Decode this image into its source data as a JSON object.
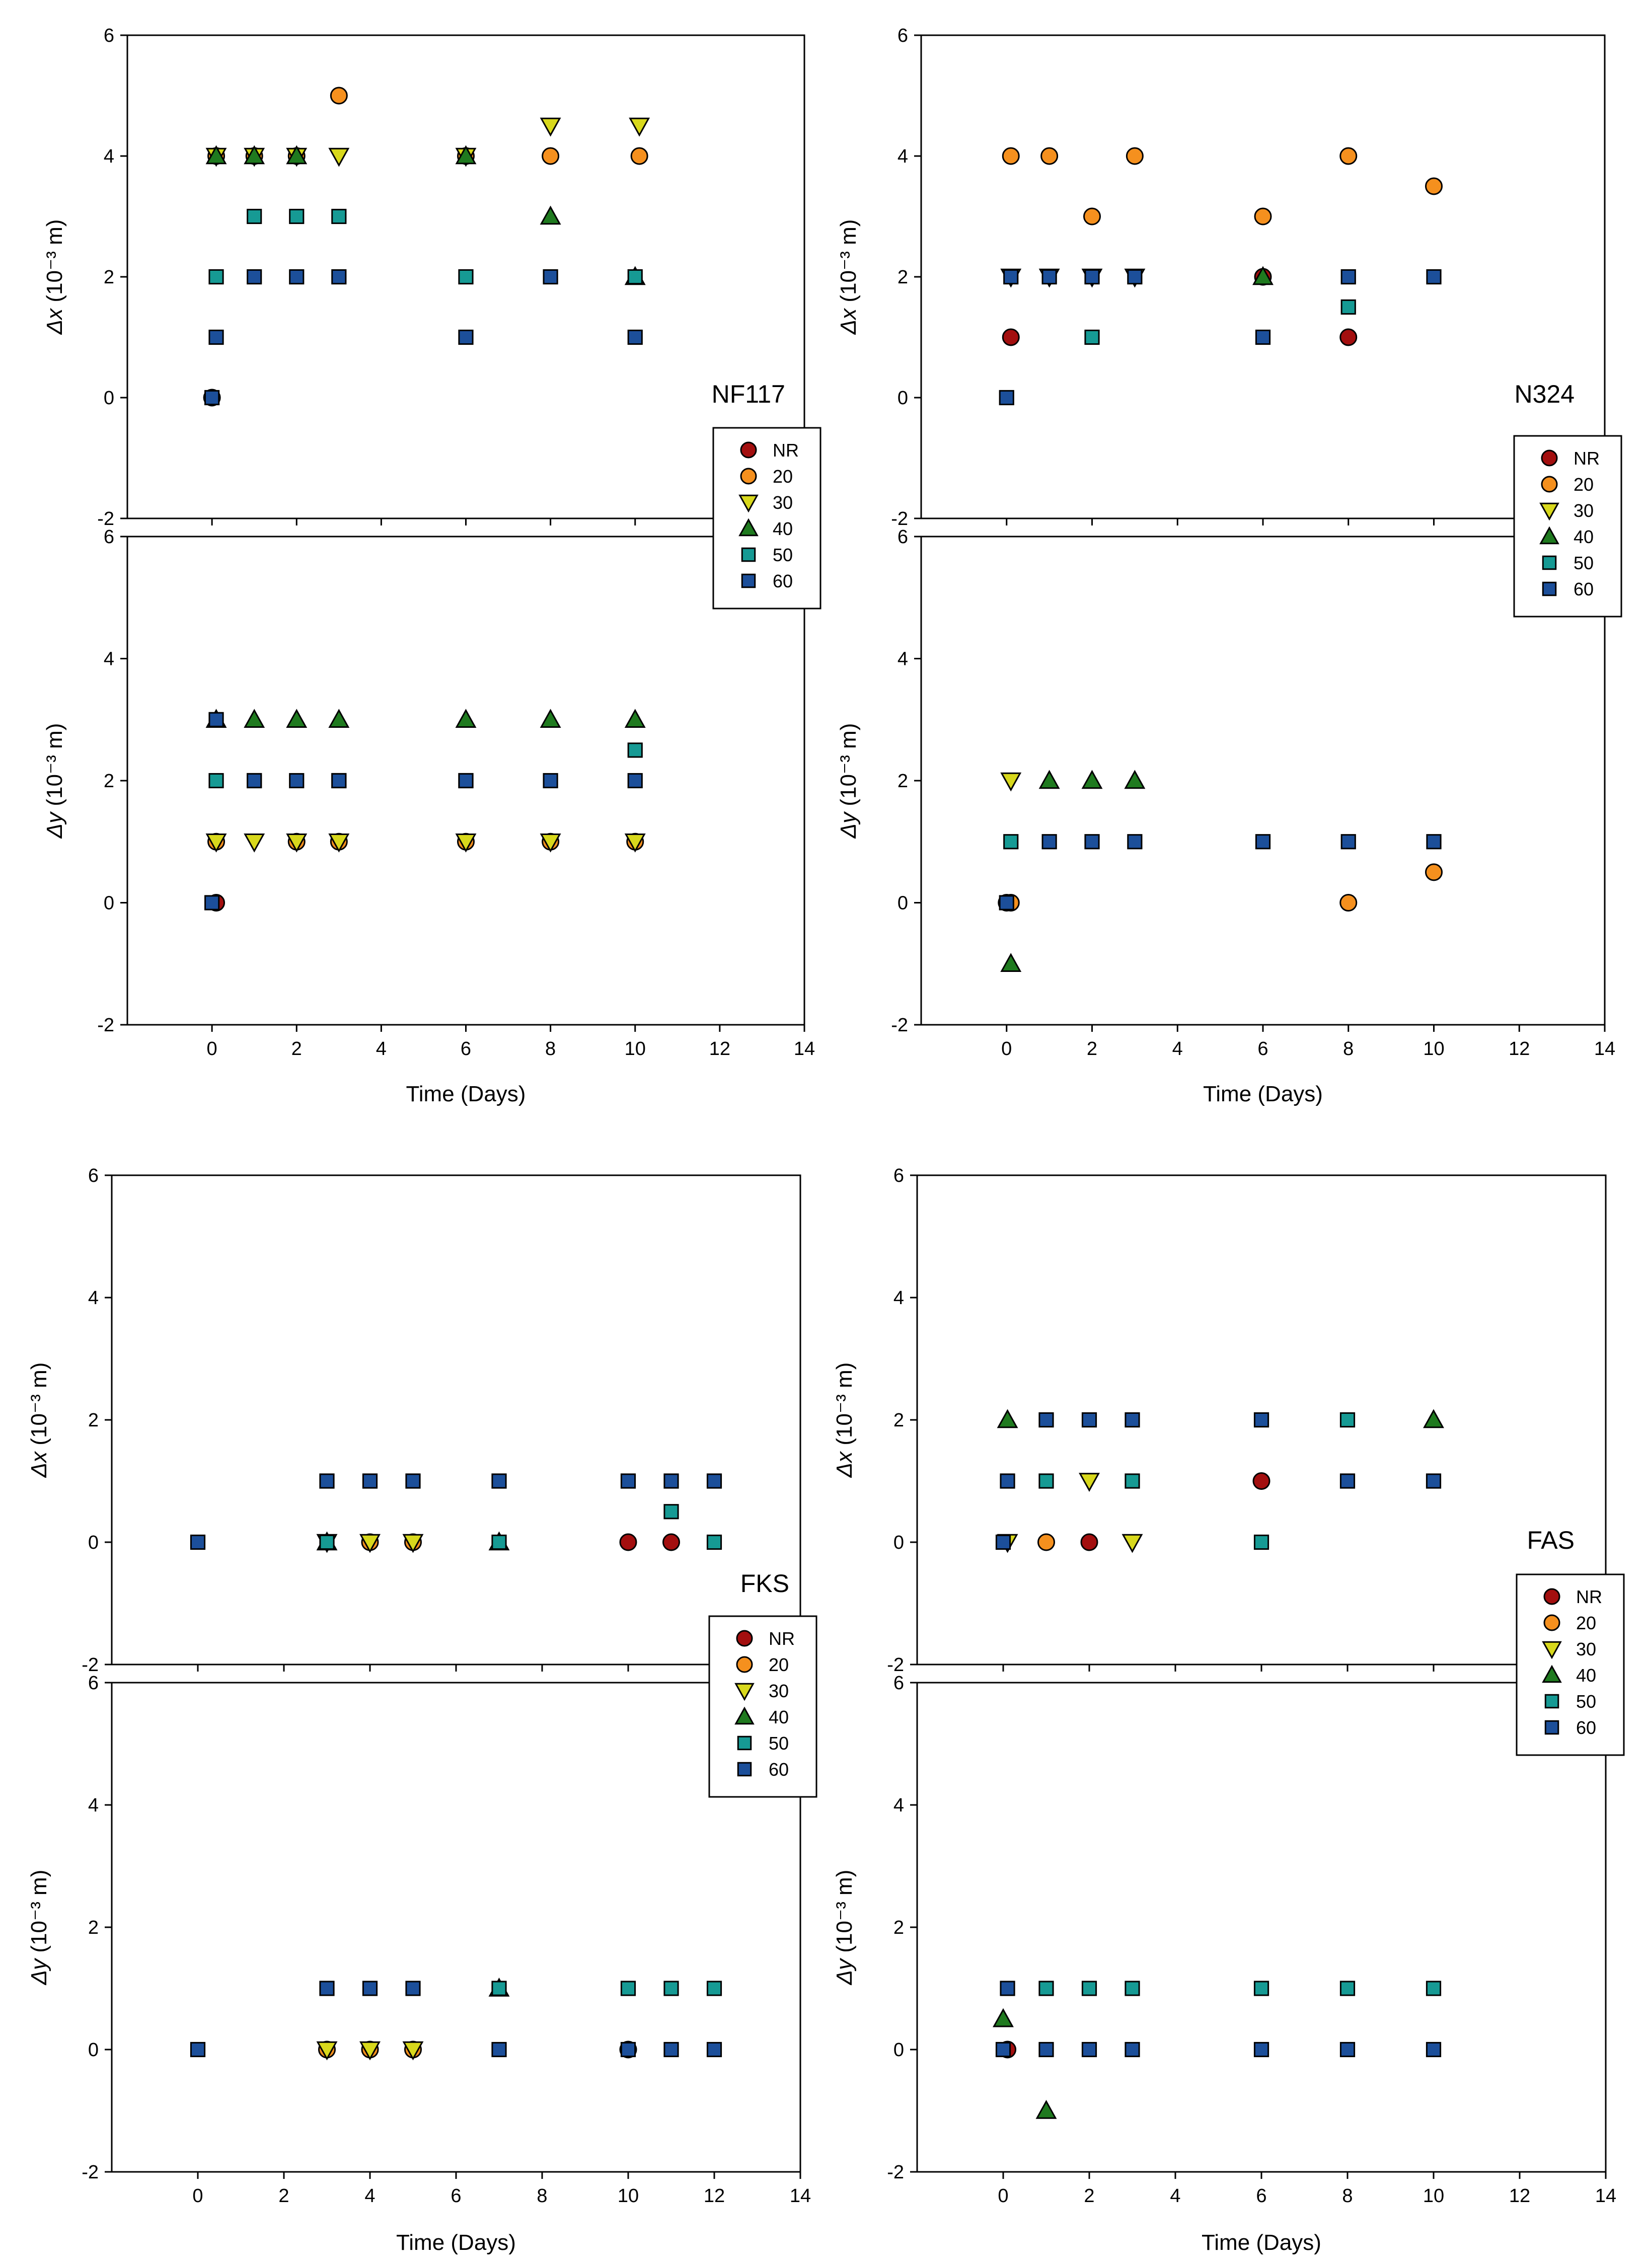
{
  "chart_data": [
    {
      "type": "scatter",
      "title": "NF117",
      "xlabel": "Time (Days)",
      "xlim": [
        -2,
        14
      ],
      "xticks": [
        0,
        2,
        4,
        6,
        8,
        10,
        12,
        14
      ],
      "subplots": [
        {
          "ylabel_symbol": "Δx",
          "ylabel_unit": "(10⁻³ m)",
          "ylim": [
            -2,
            6
          ],
          "yticks": [
            -2,
            0,
            2,
            4,
            6
          ],
          "series": [
            {
              "name": "NR",
              "x": [
                0
              ],
              "y": [
                0
              ]
            },
            {
              "name": "20",
              "x": [
                0.1,
                1,
                2,
                3,
                6,
                8,
                10.1
              ],
              "y": [
                4,
                4,
                4,
                5,
                4,
                4,
                4
              ]
            },
            {
              "name": "30",
              "x": [
                0.1,
                1,
                2,
                3,
                6,
                8,
                10.1
              ],
              "y": [
                4,
                4,
                4,
                4,
                4,
                4.5,
                4.5
              ]
            },
            {
              "name": "40",
              "x": [
                0.1,
                1,
                2,
                6,
                8,
                10
              ],
              "y": [
                4,
                4,
                4,
                4,
                3,
                2
              ]
            },
            {
              "name": "50",
              "x": [
                0.1,
                1,
                2,
                3,
                6,
                10
              ],
              "y": [
                2,
                3,
                3,
                3,
                2,
                2
              ]
            },
            {
              "name": "60",
              "x": [
                0,
                0.1,
                1,
                2,
                3,
                6,
                8,
                10
              ],
              "y": [
                0,
                1,
                2,
                2,
                2,
                1,
                2,
                1
              ]
            }
          ]
        },
        {
          "ylabel_symbol": "Δy",
          "ylabel_unit": "(10⁻³ m)",
          "ylim": [
            -2,
            6
          ],
          "yticks": [
            -2,
            0,
            2,
            4,
            6
          ],
          "series": [
            {
              "name": "NR",
              "x": [
                0.1
              ],
              "y": [
                0
              ]
            },
            {
              "name": "20",
              "x": [
                0.1,
                2,
                3,
                6,
                8,
                10
              ],
              "y": [
                1,
                1,
                1,
                1,
                1,
                1
              ]
            },
            {
              "name": "30",
              "x": [
                0.1,
                1,
                2,
                3,
                6,
                8,
                10
              ],
              "y": [
                1,
                1,
                1,
                1,
                1,
                1,
                1
              ]
            },
            {
              "name": "40",
              "x": [
                0.1,
                1,
                2,
                3,
                6,
                8,
                10
              ],
              "y": [
                3,
                3,
                3,
                3,
                3,
                3,
                3
              ]
            },
            {
              "name": "50",
              "x": [
                0.1,
                1,
                3,
                6,
                10
              ],
              "y": [
                2,
                2,
                2,
                2,
                2.5
              ]
            },
            {
              "name": "60",
              "x": [
                0,
                0.1,
                1,
                2,
                3,
                6,
                8,
                10
              ],
              "y": [
                0,
                3,
                2,
                2,
                2,
                2,
                2,
                2
              ]
            }
          ]
        }
      ],
      "legend": {
        "placement": "right-middle",
        "entries": [
          "NR",
          "20",
          "30",
          "40",
          "50",
          "60"
        ]
      }
    },
    {
      "type": "scatter",
      "title": "N324",
      "xlabel": "Time (Days)",
      "xlim": [
        -2,
        14
      ],
      "xticks": [
        0,
        2,
        4,
        6,
        8,
        10,
        12,
        14
      ],
      "subplots": [
        {
          "ylabel_symbol": "Δx",
          "ylabel_unit": "(10⁻³ m)",
          "ylim": [
            -2,
            6
          ],
          "yticks": [
            -2,
            0,
            2,
            4,
            6
          ],
          "series": [
            {
              "name": "NR",
              "x": [
                0.1,
                6,
                8
              ],
              "y": [
                1,
                2,
                1
              ]
            },
            {
              "name": "20",
              "x": [
                0.1,
                1,
                2,
                3,
                6,
                8,
                10
              ],
              "y": [
                4,
                4,
                3,
                4,
                3,
                4,
                3.5
              ]
            },
            {
              "name": "30",
              "x": [
                0.1,
                1,
                2,
                3
              ],
              "y": [
                2,
                2,
                2,
                2
              ]
            },
            {
              "name": "40",
              "x": [
                6
              ],
              "y": [
                2
              ]
            },
            {
              "name": "50",
              "x": [
                2,
                8
              ],
              "y": [
                1,
                1.5
              ]
            },
            {
              "name": "60",
              "x": [
                0,
                0.1,
                1,
                2,
                3,
                6,
                8,
                10
              ],
              "y": [
                0,
                2,
                2,
                2,
                2,
                1,
                2,
                2
              ]
            }
          ]
        },
        {
          "ylabel_symbol": "Δy",
          "ylabel_unit": "(10⁻³ m)",
          "ylim": [
            -2,
            6
          ],
          "yticks": [
            -2,
            0,
            2,
            4,
            6
          ],
          "series": [
            {
              "name": "NR",
              "x": [
                0
              ],
              "y": [
                0
              ]
            },
            {
              "name": "20",
              "x": [
                0.1,
                8,
                10
              ],
              "y": [
                0,
                0,
                0.5
              ]
            },
            {
              "name": "30",
              "x": [
                0.1
              ],
              "y": [
                2
              ]
            },
            {
              "name": "40",
              "x": [
                0.1,
                1,
                2,
                3
              ],
              "y": [
                -1,
                2,
                2,
                2
              ]
            },
            {
              "name": "50",
              "x": [
                0.1
              ],
              "y": [
                1
              ]
            },
            {
              "name": "60",
              "x": [
                0,
                1,
                2,
                3,
                6,
                8,
                10
              ],
              "y": [
                0,
                1,
                1,
                1,
                1,
                1,
                1
              ]
            }
          ]
        }
      ],
      "legend": {
        "placement": "right-middle",
        "entries": [
          "NR",
          "20",
          "30",
          "40",
          "50",
          "60"
        ]
      }
    },
    {
      "type": "scatter",
      "title": "FKS",
      "xlabel": "Time (Days)",
      "xlim": [
        -2,
        14
      ],
      "xticks": [
        0,
        2,
        4,
        6,
        8,
        10,
        12,
        14
      ],
      "subplots": [
        {
          "ylabel_symbol": "Δx",
          "ylabel_unit": "(10⁻³ m)",
          "ylim": [
            -2,
            6
          ],
          "yticks": [
            -2,
            0,
            2,
            4,
            6
          ],
          "series": [
            {
              "name": "NR",
              "x": [
                10,
                11
              ],
              "y": [
                0,
                0
              ]
            },
            {
              "name": "20",
              "x": [
                4,
                5
              ],
              "y": [
                0,
                0
              ]
            },
            {
              "name": "30",
              "x": [
                3,
                4,
                5
              ],
              "y": [
                0,
                0,
                0
              ]
            },
            {
              "name": "40",
              "x": [
                3,
                7
              ],
              "y": [
                0,
                0
              ]
            },
            {
              "name": "50",
              "x": [
                3,
                7,
                11,
                12
              ],
              "y": [
                0,
                0,
                0.5,
                0
              ]
            },
            {
              "name": "60",
              "x": [
                0,
                3,
                4,
                5,
                7,
                10,
                11,
                12
              ],
              "y": [
                0,
                1,
                1,
                1,
                1,
                1,
                1,
                1
              ]
            }
          ]
        },
        {
          "ylabel_symbol": "Δy",
          "ylabel_unit": "(10⁻³ m)",
          "ylim": [
            -2,
            6
          ],
          "yticks": [
            -2,
            0,
            2,
            4,
            6
          ],
          "series": [
            {
              "name": "NR",
              "x": [
                10
              ],
              "y": [
                0
              ]
            },
            {
              "name": "20",
              "x": [
                3,
                4,
                5
              ],
              "y": [
                0,
                0,
                0
              ]
            },
            {
              "name": "30",
              "x": [
                3,
                4,
                5
              ],
              "y": [
                0,
                0,
                0
              ]
            },
            {
              "name": "40",
              "x": [
                7
              ],
              "y": [
                1
              ]
            },
            {
              "name": "50",
              "x": [
                7,
                10,
                11,
                12
              ],
              "y": [
                1,
                1,
                1,
                1
              ]
            },
            {
              "name": "60",
              "x": [
                0,
                3,
                4,
                5,
                7,
                10,
                11,
                12
              ],
              "y": [
                0,
                1,
                1,
                1,
                0,
                0,
                0,
                0
              ]
            }
          ]
        }
      ],
      "legend": {
        "placement": "right-middle",
        "entries": [
          "NR",
          "20",
          "30",
          "40",
          "50",
          "60"
        ]
      }
    },
    {
      "type": "scatter",
      "title": "FAS",
      "xlabel": "Time (Days)",
      "xlim": [
        -2,
        14
      ],
      "xticks": [
        0,
        2,
        4,
        6,
        8,
        10,
        12,
        14
      ],
      "subplots": [
        {
          "ylabel_symbol": "Δx",
          "ylabel_unit": "(10⁻³ m)",
          "ylim": [
            -2,
            6
          ],
          "yticks": [
            -2,
            0,
            2,
            4,
            6
          ],
          "series": [
            {
              "name": "NR",
              "x": [
                2,
                6
              ],
              "y": [
                0,
                1
              ]
            },
            {
              "name": "20",
              "x": [
                1
              ],
              "y": [
                0
              ]
            },
            {
              "name": "30",
              "x": [
                0.1,
                2,
                3
              ],
              "y": [
                0,
                1,
                0
              ]
            },
            {
              "name": "40",
              "x": [
                0.1,
                10
              ],
              "y": [
                2,
                2
              ]
            },
            {
              "name": "50",
              "x": [
                1,
                3,
                6,
                8
              ],
              "y": [
                1,
                1,
                0,
                2
              ]
            },
            {
              "name": "60",
              "x": [
                0,
                0.1,
                1,
                2,
                3,
                6,
                8,
                10
              ],
              "y": [
                0,
                1,
                2,
                2,
                2,
                2,
                1,
                1
              ]
            }
          ]
        },
        {
          "ylabel_symbol": "Δy",
          "ylabel_unit": "(10⁻³ m)",
          "ylim": [
            -2,
            6
          ],
          "yticks": [
            -2,
            0,
            2,
            4,
            6
          ],
          "series": [
            {
              "name": "NR",
              "x": [
                0.1
              ],
              "y": [
                0
              ]
            },
            {
              "name": "20",
              "x": [],
              "y": []
            },
            {
              "name": "30",
              "x": [],
              "y": []
            },
            {
              "name": "40",
              "x": [
                0,
                1
              ],
              "y": [
                0.5,
                -1
              ]
            },
            {
              "name": "50",
              "x": [
                1,
                2,
                3,
                6,
                8,
                10
              ],
              "y": [
                1,
                1,
                1,
                1,
                1,
                1
              ]
            },
            {
              "name": "60",
              "x": [
                0,
                0.1,
                1,
                2,
                3,
                6,
                8,
                10
              ],
              "y": [
                0,
                1,
                0,
                0,
                0,
                0,
                0,
                0
              ]
            }
          ]
        }
      ],
      "legend": {
        "placement": "right-middle",
        "entries": [
          "NR",
          "20",
          "30",
          "40",
          "50",
          "60"
        ]
      }
    }
  ],
  "series_styles": {
    "NR": {
      "marker": "circle",
      "color": "#a30f0f"
    },
    "20": {
      "marker": "circle",
      "color": "#f5901e"
    },
    "30": {
      "marker": "triangle-down",
      "color": "#d8d81c"
    },
    "40": {
      "marker": "triangle-up",
      "color": "#1f7a1f"
    },
    "50": {
      "marker": "square",
      "color": "#169a94"
    },
    "60": {
      "marker": "square",
      "color": "#1c4f9a"
    }
  }
}
